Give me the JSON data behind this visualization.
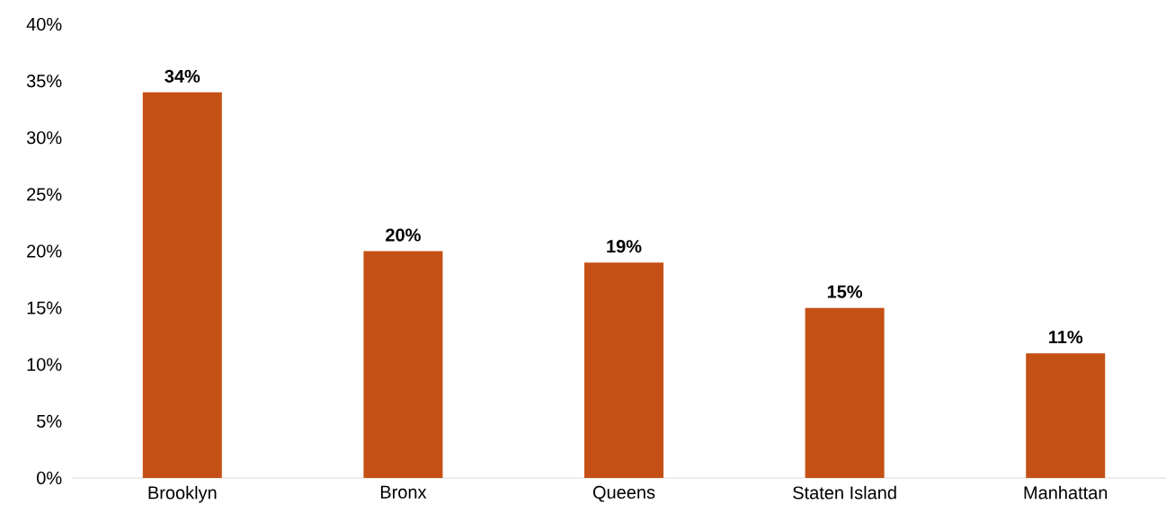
{
  "chart_data": {
    "type": "bar",
    "categories": [
      "Brooklyn",
      "Bronx",
      "Queens",
      "Staten Island",
      "Manhattan"
    ],
    "values": [
      34,
      20,
      19,
      15,
      11
    ],
    "value_labels": [
      "34%",
      "20%",
      "19%",
      "15%",
      "11%"
    ],
    "color": "#c55015",
    "ylim": [
      0,
      40
    ],
    "yticks": [
      {
        "value": 0,
        "label": "0%"
      },
      {
        "value": 5,
        "label": "5%"
      },
      {
        "value": 10,
        "label": "10%"
      },
      {
        "value": 15,
        "label": "15%"
      },
      {
        "value": 20,
        "label": "20%"
      },
      {
        "value": 25,
        "label": "25%"
      },
      {
        "value": 30,
        "label": "30%"
      },
      {
        "value": 35,
        "label": "35%"
      },
      {
        "value": 40,
        "label": "40%"
      }
    ],
    "grid": false
  }
}
